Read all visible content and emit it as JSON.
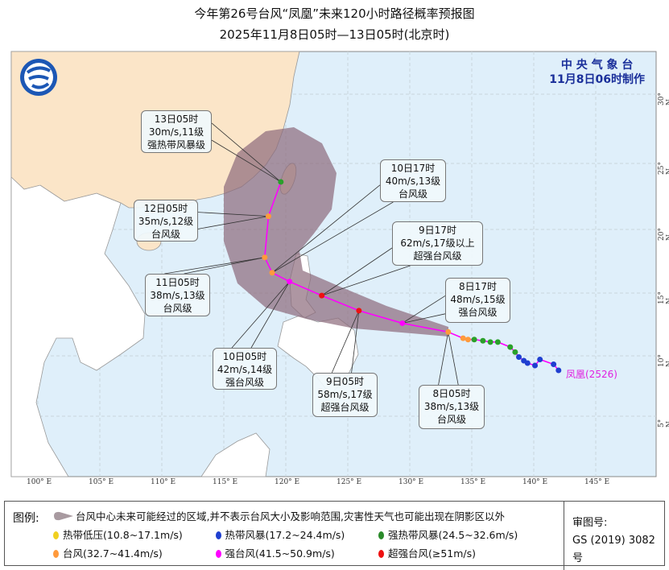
{
  "header": {
    "title": "今年第26号台风“凤凰”未来120小时路径概率预报图",
    "subtitle": "2025年11月8日05时—13日05时(北京时)"
  },
  "agency": {
    "name": "中 央 气 象 台",
    "issued": "11月8日06时制作"
  },
  "map": {
    "lon_ticks": [
      "100° E",
      "105° E",
      "110° E",
      "115° E",
      "120° E",
      "125° E",
      "130° E",
      "135° E",
      "140° E",
      "145° E"
    ],
    "lat_ticks": [
      "30° N",
      "25° N",
      "20° N",
      "15° N",
      "10° N",
      "5° N"
    ],
    "colors": {
      "ocean": "#dfeffa",
      "china": "#fbe5c8",
      "other_land": "#ffffff",
      "cone": "#8c6a7a",
      "track": "#ff00ff"
    },
    "storm_label": "凤凰(2526)",
    "forecast_points": [
      {
        "time": "8日05时",
        "wind": "38m/s,13级",
        "level": "台风级",
        "lon": 133.1,
        "lat": 11.9,
        "color": "#ff9a3c"
      },
      {
        "time": "8日17时",
        "wind": "48m/s,15级",
        "level": "强台风级",
        "lon": 129.4,
        "lat": 12.6,
        "color": "#ff00ff"
      },
      {
        "time": "9日05时",
        "wind": "58m/s,17级",
        "level": "超强台风级",
        "lon": 125.9,
        "lat": 13.6,
        "color": "#ee1111"
      },
      {
        "time": "9日17时",
        "wind": "62m/s,17级以上",
        "level": "超强台风级",
        "lon": 122.9,
        "lat": 14.8,
        "color": "#ee1111"
      },
      {
        "time": "10日05时",
        "wind": "42m/s,14级",
        "level": "强台风级",
        "lon": 120.3,
        "lat": 15.9,
        "color": "#ff00ff"
      },
      {
        "time": "10日17时",
        "wind": "40m/s,13级",
        "level": "台风级",
        "lon": 118.9,
        "lat": 16.6,
        "color": "#ff9a3c"
      },
      {
        "time": "11日05时",
        "wind": "38m/s,13级",
        "level": "台风级",
        "lon": 118.3,
        "lat": 17.8,
        "color": "#ff9a3c"
      },
      {
        "time": "12日05时",
        "wind": "35m/s,12级",
        "level": "台风级",
        "lon": 118.6,
        "lat": 21.0,
        "color": "#ff9a3c"
      },
      {
        "time": "13日05时",
        "wind": "30m/s,11级",
        "level": "强热带风暴级",
        "lon": 119.6,
        "lat": 23.6,
        "color": "#2aa02a"
      }
    ],
    "past_track": [
      {
        "lon": 134.3,
        "lat": 11.4,
        "color": "#ff9a3c"
      },
      {
        "lon": 134.7,
        "lat": 11.3,
        "color": "#ff9a3c"
      },
      {
        "lon": 135.2,
        "lat": 11.3,
        "color": "#2aa02a"
      },
      {
        "lon": 135.9,
        "lat": 11.2,
        "color": "#2aa02a"
      },
      {
        "lon": 136.5,
        "lat": 11.1,
        "color": "#2aa02a"
      },
      {
        "lon": 137.1,
        "lat": 11.1,
        "color": "#2aa02a"
      },
      {
        "lon": 138.1,
        "lat": 10.7,
        "color": "#2aa02a"
      },
      {
        "lon": 138.5,
        "lat": 10.3,
        "color": "#2aa02a"
      },
      {
        "lon": 138.8,
        "lat": 9.9,
        "color": "#1f3fd0"
      },
      {
        "lon": 139.2,
        "lat": 9.6,
        "color": "#1f3fd0"
      },
      {
        "lon": 139.5,
        "lat": 9.4,
        "color": "#1f3fd0"
      },
      {
        "lon": 140.1,
        "lat": 9.2,
        "color": "#1f3fd0"
      },
      {
        "lon": 140.5,
        "lat": 9.7,
        "color": "#1f3fd0"
      },
      {
        "lon": 141.6,
        "lat": 9.3,
        "color": "#1f3fd0"
      },
      {
        "lon": 142.0,
        "lat": 8.8,
        "color": "#1f3fd0"
      }
    ]
  },
  "legend": {
    "title": "图例:",
    "cone_text": "台风中心未来可能经过的区域,并不表示台风大小及影响范围,灾害性天气也可能出现在阴影区以外",
    "items": [
      {
        "label": "热带低压(10.8~17.1m/s)",
        "color": "#f0d020"
      },
      {
        "label": "热带风暴(17.2~24.4m/s)",
        "color": "#1f3fd0"
      },
      {
        "label": "强热带风暴(24.5~32.6m/s)",
        "color": "#2a8a2a"
      },
      {
        "label": "台风(32.7~41.4m/s)",
        "color": "#ff9a3c"
      },
      {
        "label": "强台风(41.5~50.9m/s)",
        "color": "#ff00ff"
      },
      {
        "label": "超强台风(≥51m/s)",
        "color": "#ee1111"
      }
    ],
    "approval_label": "审图号:",
    "approval_no": "GS (2019) 3082号"
  }
}
